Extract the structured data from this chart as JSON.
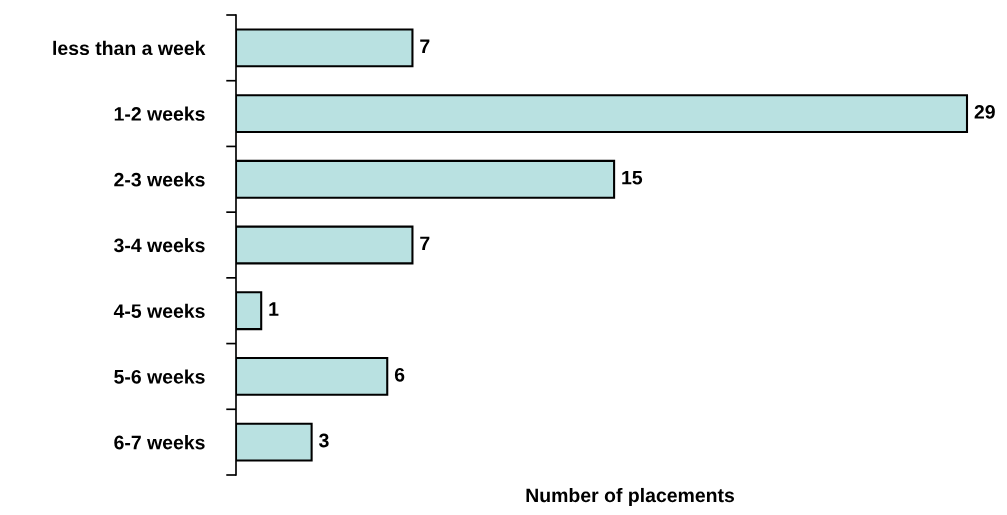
{
  "chart_data": {
    "type": "bar",
    "orientation": "horizontal",
    "xlabel": "Number of placements",
    "categories": [
      "less than a week",
      "1-2 weeks",
      "2-3 weeks",
      "3-4 weeks",
      "4-5 weeks",
      "5-6 weeks",
      "6-7 weeks"
    ],
    "values": [
      7,
      29,
      15,
      7,
      1,
      6,
      3
    ],
    "color": "#b9e1e1",
    "data_labels": true,
    "grid": false,
    "legend": false
  }
}
